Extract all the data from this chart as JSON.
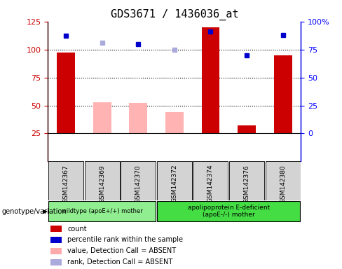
{
  "title": "GDS3671 / 1436036_at",
  "samples": [
    "GSM142367",
    "GSM142369",
    "GSM142370",
    "GSM142372",
    "GSM142374",
    "GSM142376",
    "GSM142380"
  ],
  "red_bar_values": [
    97,
    0,
    52,
    0,
    120,
    32,
    95
  ],
  "pink_bar_values": [
    0,
    53,
    52,
    44,
    0,
    0,
    0
  ],
  "blue_square_values": [
    87,
    0,
    80,
    0,
    91,
    70,
    88
  ],
  "lightblue_square_values": [
    0,
    81,
    0,
    75,
    0,
    0,
    0
  ],
  "ylim_left": [
    0,
    125
  ],
  "ylim_right": [
    -25,
    100
  ],
  "yticks_left": [
    25,
    50,
    75,
    100,
    125
  ],
  "ytick_labels_left": [
    "25",
    "50",
    "75",
    "100",
    "125"
  ],
  "ytick_labels_right": [
    "0",
    "25",
    "50",
    "75",
    "100%"
  ],
  "group1_label": "wildtype (apoE+/+) mother",
  "group2_label": "apolipoprotein E-deficient\n(apoE-/-) mother",
  "group1_indices": [
    0,
    1,
    2
  ],
  "group2_indices": [
    3,
    4,
    5,
    6
  ],
  "genotype_label": "genotype/variation",
  "legend_items": [
    {
      "color": "#cc0000",
      "label": "count"
    },
    {
      "color": "#0000cc",
      "label": "percentile rank within the sample"
    },
    {
      "color": "#ffaaaa",
      "label": "value, Detection Call = ABSENT"
    },
    {
      "color": "#aaaadd",
      "label": "rank, Detection Call = ABSENT"
    }
  ],
  "bar_width": 0.5,
  "red_color": "#cc0000",
  "pink_color": "#ffb3b3",
  "blue_color": "#0000cc",
  "lightblue_color": "#aaaadd",
  "group1_color": "#90ee90",
  "group2_color": "#44dd44",
  "title_fontsize": 11,
  "tick_fontsize": 8
}
